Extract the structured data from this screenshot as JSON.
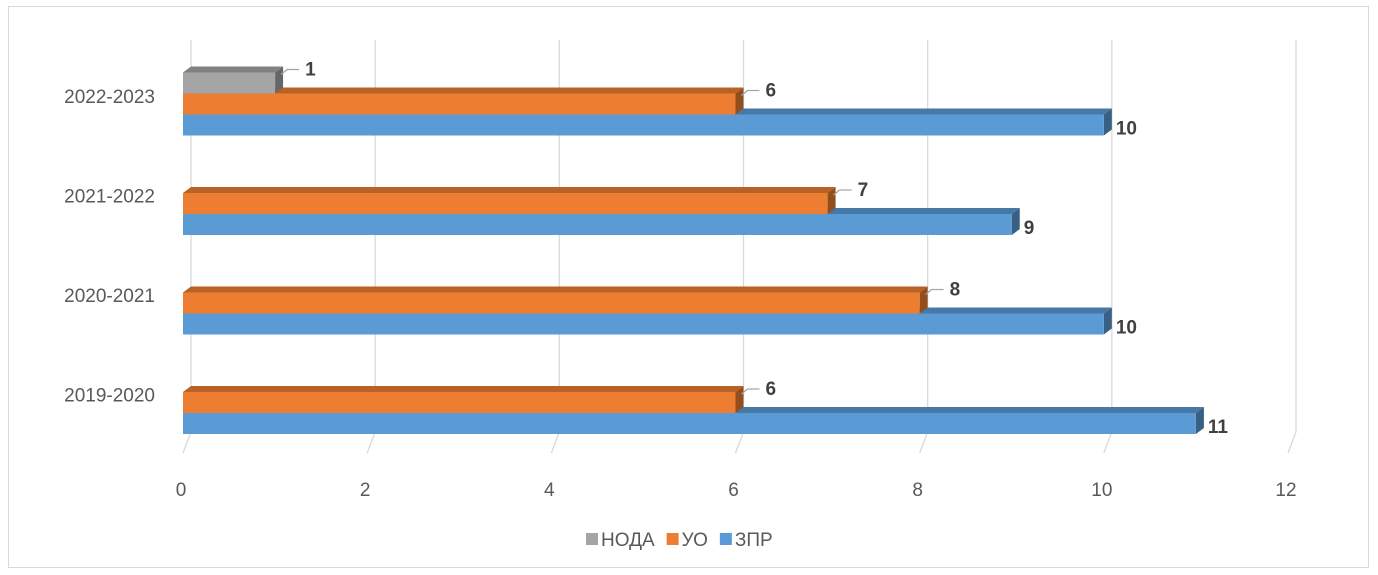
{
  "chart_data": {
    "type": "bar",
    "orientation": "horizontal",
    "categories": [
      "2019-2020",
      "2020-2021",
      "2021-2022",
      "2022-2023"
    ],
    "series": [
      {
        "name": "ЗПР",
        "color": "#5b9bd5",
        "values": [
          11,
          10,
          9,
          10
        ]
      },
      {
        "name": "УО",
        "color": "#ed7d31",
        "values": [
          6,
          8,
          7,
          6
        ]
      },
      {
        "name": "НОДА",
        "color": "#a5a5a5",
        "values": [
          null,
          null,
          null,
          1
        ]
      }
    ],
    "legend_order": [
      "НОДА",
      "УО",
      "ЗПР"
    ],
    "xlim": [
      0,
      12
    ],
    "xticks": [
      0,
      2,
      4,
      6,
      8,
      10,
      12
    ],
    "grid": true,
    "legend_position": "bottom",
    "data_labels": true
  }
}
